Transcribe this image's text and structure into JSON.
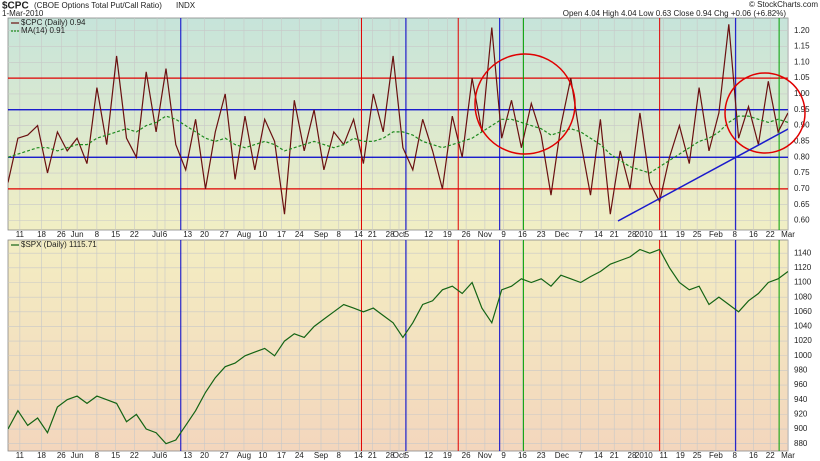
{
  "chart_data": [
    {
      "type": "line",
      "title": "$CPC",
      "subtitle": "(CBOE Options Total Put/Call Ratio)",
      "exchange": "INDX",
      "date": "1-Mar-2010",
      "quote": "Open 4.04 High 4.04 Low 0.63 Close 0.94 Chg +0.06 (+6.82%)",
      "credit": "© StockCharts.com",
      "grid": true,
      "xlim": [
        0,
        79
      ],
      "xticks": [
        {
          "value": 1.2,
          "label": "11"
        },
        {
          "value": 3.4,
          "label": "18"
        },
        {
          "value": 5.4,
          "label": "26"
        },
        {
          "value": 7.0,
          "label": "Jun"
        },
        {
          "value": 9.0,
          "label": "8"
        },
        {
          "value": 10.9,
          "label": "15"
        },
        {
          "value": 12.8,
          "label": "22"
        },
        {
          "value": 15.1,
          "label": "Jul"
        },
        {
          "value": 15.9,
          "label": "6"
        },
        {
          "value": 18.2,
          "label": "13"
        },
        {
          "value": 19.9,
          "label": "20"
        },
        {
          "value": 21.9,
          "label": "27"
        },
        {
          "value": 23.9,
          "label": "Aug"
        },
        {
          "value": 25.8,
          "label": "10"
        },
        {
          "value": 27.7,
          "label": "17"
        },
        {
          "value": 29.5,
          "label": "24"
        },
        {
          "value": 31.7,
          "label": "Sep"
        },
        {
          "value": 33.5,
          "label": "8"
        },
        {
          "value": 35.5,
          "label": "14"
        },
        {
          "value": 36.9,
          "label": "21"
        },
        {
          "value": 38.7,
          "label": "28"
        },
        {
          "value": 39.6,
          "label": "Oct"
        },
        {
          "value": 40.4,
          "label": "5"
        },
        {
          "value": 42.6,
          "label": "12"
        },
        {
          "value": 44.5,
          "label": "19"
        },
        {
          "value": 46.4,
          "label": "26"
        },
        {
          "value": 48.3,
          "label": "Nov"
        },
        {
          "value": 50.2,
          "label": "9"
        },
        {
          "value": 52.1,
          "label": "16"
        },
        {
          "value": 54.0,
          "label": "23"
        },
        {
          "value": 56.1,
          "label": "Dec"
        },
        {
          "value": 58.0,
          "label": "7"
        },
        {
          "value": 59.8,
          "label": "14"
        },
        {
          "value": 61.4,
          "label": "21"
        },
        {
          "value": 63.2,
          "label": "28"
        },
        {
          "value": 64.4,
          "label": "2010"
        },
        {
          "value": 66.4,
          "label": "11"
        },
        {
          "value": 68.1,
          "label": "19"
        },
        {
          "value": 69.8,
          "label": "25"
        },
        {
          "value": 71.7,
          "label": "Feb"
        },
        {
          "value": 73.6,
          "label": "8"
        },
        {
          "value": 75.5,
          "label": "16"
        },
        {
          "value": 77.2,
          "label": "22"
        },
        {
          "value": 79,
          "label": "Mar"
        }
      ],
      "ylim": [
        0.57,
        1.24
      ],
      "yticks": [
        {
          "value": 0.6,
          "label": "0.60"
        },
        {
          "value": 0.65,
          "label": "0.65"
        },
        {
          "value": 0.7,
          "label": "0.70"
        },
        {
          "value": 0.75,
          "label": "0.75"
        },
        {
          "value": 0.8,
          "label": "0.80"
        },
        {
          "value": 0.85,
          "label": "0.85"
        },
        {
          "value": 0.9,
          "label": "0.90"
        },
        {
          "value": 0.95,
          "label": "0.95"
        },
        {
          "value": 1.0,
          "label": "1.00"
        },
        {
          "value": 1.05,
          "label": "1.05"
        },
        {
          "value": 1.1,
          "label": "1.10"
        },
        {
          "value": 1.15,
          "label": "1.15"
        },
        {
          "value": 1.2,
          "label": "1.20"
        }
      ],
      "hlines": [
        {
          "value": 1.05,
          "color": "#e00000"
        },
        {
          "value": 0.95,
          "color": "#0000cc"
        },
        {
          "value": 0.8,
          "color": "#0000cc"
        },
        {
          "value": 0.7,
          "color": "#e00000"
        }
      ],
      "vlines": [
        {
          "value": 17.5,
          "color": "#0000cc"
        },
        {
          "value": 35.8,
          "color": "#e00000"
        },
        {
          "value": 40.3,
          "color": "#0000cc"
        },
        {
          "value": 45.6,
          "color": "#e00000"
        },
        {
          "value": 49.8,
          "color": "#0000cc"
        },
        {
          "value": 52.2,
          "color": "#00a000"
        },
        {
          "value": 66.0,
          "color": "#e00000"
        },
        {
          "value": 73.7,
          "color": "#0000cc"
        },
        {
          "value": 78.1,
          "color": "#00a000"
        }
      ],
      "series": [
        {
          "name": "$CPC (Daily) 0.94",
          "color": "#6a1010",
          "dash": false,
          "values": [
            0.72,
            0.86,
            0.87,
            0.9,
            0.75,
            0.88,
            0.82,
            0.86,
            0.78,
            1.02,
            0.84,
            1.12,
            0.86,
            0.8,
            1.07,
            0.88,
            1.08,
            0.84,
            0.76,
            0.92,
            0.7,
            0.88,
            1.0,
            0.73,
            0.93,
            0.76,
            0.92,
            0.85,
            0.62,
            0.98,
            0.82,
            0.95,
            0.76,
            0.88,
            0.84,
            0.92,
            0.78,
            1.0,
            0.88,
            1.12,
            0.83,
            0.76,
            0.92,
            0.82,
            0.7,
            0.93,
            0.8,
            1.05,
            0.88,
            1.21,
            0.86,
            0.98,
            0.83,
            0.97,
            0.87,
            0.68,
            0.9,
            1.05,
            0.85,
            0.68,
            0.92,
            0.62,
            0.82,
            0.7,
            0.94,
            0.72,
            0.66,
            0.8,
            0.9,
            0.78,
            1.02,
            0.82,
            0.94,
            1.22,
            0.86,
            0.96,
            0.84,
            1.04,
            0.88,
            0.94
          ]
        },
        {
          "name": "MA(14) 0.91",
          "color": "#1f8a1f",
          "dash": true,
          "values": [
            0.8,
            0.81,
            0.82,
            0.83,
            0.83,
            0.82,
            0.83,
            0.84,
            0.84,
            0.86,
            0.87,
            0.88,
            0.89,
            0.88,
            0.9,
            0.91,
            0.93,
            0.92,
            0.9,
            0.88,
            0.86,
            0.85,
            0.86,
            0.84,
            0.83,
            0.84,
            0.85,
            0.84,
            0.82,
            0.83,
            0.84,
            0.85,
            0.84,
            0.83,
            0.84,
            0.86,
            0.85,
            0.85,
            0.86,
            0.88,
            0.88,
            0.87,
            0.85,
            0.84,
            0.83,
            0.84,
            0.85,
            0.86,
            0.88,
            0.9,
            0.92,
            0.92,
            0.91,
            0.9,
            0.89,
            0.87,
            0.88,
            0.89,
            0.88,
            0.86,
            0.84,
            0.81,
            0.79,
            0.77,
            0.76,
            0.75,
            0.77,
            0.79,
            0.81,
            0.83,
            0.85,
            0.86,
            0.88,
            0.91,
            0.93,
            0.93,
            0.92,
            0.91,
            0.92,
            0.91
          ]
        }
      ]
    },
    {
      "type": "line",
      "grid": true,
      "xlim": [
        0,
        79
      ],
      "xticks": [
        {
          "value": 1.2,
          "label": "11"
        },
        {
          "value": 3.4,
          "label": "18"
        },
        {
          "value": 5.4,
          "label": "26"
        },
        {
          "value": 7.0,
          "label": "Jun"
        },
        {
          "value": 9.0,
          "label": "8"
        },
        {
          "value": 10.9,
          "label": "15"
        },
        {
          "value": 12.8,
          "label": "22"
        },
        {
          "value": 15.1,
          "label": "Jul"
        },
        {
          "value": 15.9,
          "label": "6"
        },
        {
          "value": 18.2,
          "label": "13"
        },
        {
          "value": 19.9,
          "label": "20"
        },
        {
          "value": 21.9,
          "label": "27"
        },
        {
          "value": 23.9,
          "label": "Aug"
        },
        {
          "value": 25.8,
          "label": "10"
        },
        {
          "value": 27.7,
          "label": "17"
        },
        {
          "value": 29.5,
          "label": "24"
        },
        {
          "value": 31.7,
          "label": "Sep"
        },
        {
          "value": 33.5,
          "label": "8"
        },
        {
          "value": 35.5,
          "label": "14"
        },
        {
          "value": 36.9,
          "label": "21"
        },
        {
          "value": 38.7,
          "label": "28"
        },
        {
          "value": 39.6,
          "label": "Oct"
        },
        {
          "value": 40.4,
          "label": "5"
        },
        {
          "value": 42.6,
          "label": "12"
        },
        {
          "value": 44.5,
          "label": "19"
        },
        {
          "value": 46.4,
          "label": "26"
        },
        {
          "value": 48.3,
          "label": "Nov"
        },
        {
          "value": 50.2,
          "label": "9"
        },
        {
          "value": 52.1,
          "label": "16"
        },
        {
          "value": 54.0,
          "label": "23"
        },
        {
          "value": 56.1,
          "label": "Dec"
        },
        {
          "value": 58.0,
          "label": "7"
        },
        {
          "value": 59.8,
          "label": "14"
        },
        {
          "value": 61.4,
          "label": "21"
        },
        {
          "value": 63.2,
          "label": "28"
        },
        {
          "value": 64.4,
          "label": "2010"
        },
        {
          "value": 66.4,
          "label": "11"
        },
        {
          "value": 68.1,
          "label": "19"
        },
        {
          "value": 69.8,
          "label": "25"
        },
        {
          "value": 71.7,
          "label": "Feb"
        },
        {
          "value": 73.6,
          "label": "8"
        },
        {
          "value": 75.5,
          "label": "16"
        },
        {
          "value": 77.2,
          "label": "22"
        },
        {
          "value": 79,
          "label": "Mar"
        }
      ],
      "ylim": [
        870,
        1158
      ],
      "yticks": [
        880,
        900,
        920,
        940,
        960,
        980,
        1000,
        1020,
        1040,
        1060,
        1080,
        1100,
        1120,
        1140
      ],
      "vlines": [
        {
          "value": 17.5,
          "color": "#0000cc"
        },
        {
          "value": 35.8,
          "color": "#e00000"
        },
        {
          "value": 40.3,
          "color": "#0000cc"
        },
        {
          "value": 45.6,
          "color": "#e00000"
        },
        {
          "value": 49.8,
          "color": "#0000cc"
        },
        {
          "value": 52.2,
          "color": "#00a000"
        },
        {
          "value": 66.0,
          "color": "#e00000"
        },
        {
          "value": 73.7,
          "color": "#0000cc"
        },
        {
          "value": 78.1,
          "color": "#00a000"
        }
      ],
      "series": [
        {
          "name": "$SPX (Daily) 1115.71",
          "color": "#146414",
          "dash": false,
          "values": [
            900,
            925,
            905,
            915,
            895,
            930,
            940,
            945,
            935,
            945,
            940,
            935,
            910,
            920,
            900,
            895,
            880,
            885,
            905,
            925,
            950,
            970,
            985,
            990,
            1000,
            1005,
            1010,
            1000,
            1020,
            1030,
            1025,
            1040,
            1050,
            1060,
            1070,
            1065,
            1060,
            1065,
            1055,
            1045,
            1025,
            1045,
            1070,
            1075,
            1090,
            1095,
            1085,
            1100,
            1065,
            1045,
            1090,
            1095,
            1105,
            1100,
            1105,
            1095,
            1110,
            1105,
            1100,
            1108,
            1115,
            1125,
            1130,
            1135,
            1145,
            1140,
            1145,
            1120,
            1100,
            1090,
            1095,
            1070,
            1080,
            1070,
            1060,
            1075,
            1085,
            1100,
            1105,
            1115
          ]
        }
      ]
    }
  ]
}
